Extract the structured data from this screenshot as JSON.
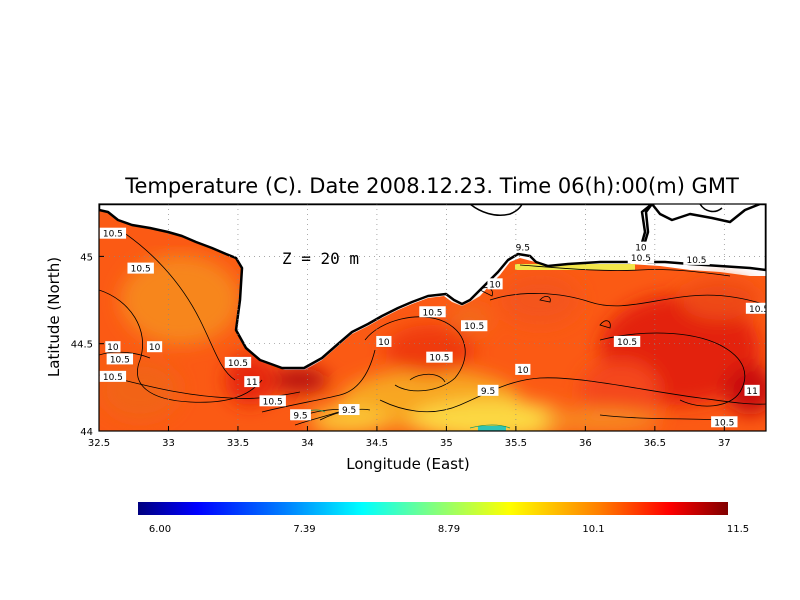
{
  "chart_data": {
    "type": "heatmap",
    "title": "Temperature (C). Date 2008.12.23. Time 06(h):00(m) GMT",
    "xlabel": "Longitude (East)",
    "ylabel": "Latitude (North)",
    "annotation": "Z = 20 m",
    "xlim": [
      32.5,
      37.3
    ],
    "ylim": [
      44.0,
      45.3
    ],
    "grid": true,
    "x_ticks": [
      "32.5",
      "33",
      "33.5",
      "34",
      "34.5",
      "35",
      "35.5",
      "36",
      "36.5",
      "37"
    ],
    "y_ticks": [
      "44",
      "44.5",
      "45"
    ],
    "colorbar": {
      "min": 6.0,
      "max": 11.5,
      "tick_labels": [
        "6.00",
        "7.39",
        "8.79",
        "10.1",
        "11.5"
      ],
      "colors": [
        "#00007f",
        "#0000ff",
        "#0080ff",
        "#00ffff",
        "#80ff80",
        "#ffff00",
        "#ff8000",
        "#ff0000",
        "#800000"
      ]
    },
    "contour_levels": [
      9.5,
      10,
      10.5,
      11
    ],
    "contour_labels": [
      {
        "lon": 32.6,
        "lat": 45.13,
        "text": "10.5"
      },
      {
        "lon": 32.8,
        "lat": 44.93,
        "text": "10.5"
      },
      {
        "lon": 32.6,
        "lat": 44.48,
        "text": "10"
      },
      {
        "lon": 32.9,
        "lat": 44.48,
        "text": "10"
      },
      {
        "lon": 32.65,
        "lat": 44.41,
        "text": "10.5"
      },
      {
        "lon": 32.6,
        "lat": 44.31,
        "text": "10.5"
      },
      {
        "lon": 33.5,
        "lat": 44.39,
        "text": "10.5"
      },
      {
        "lon": 33.6,
        "lat": 44.28,
        "text": "11"
      },
      {
        "lon": 33.75,
        "lat": 44.17,
        "text": "10.5"
      },
      {
        "lon": 33.95,
        "lat": 44.09,
        "text": "9.5"
      },
      {
        "lon": 34.3,
        "lat": 44.12,
        "text": "9.5"
      },
      {
        "lon": 34.55,
        "lat": 44.51,
        "text": "10"
      },
      {
        "lon": 34.9,
        "lat": 44.68,
        "text": "10.5"
      },
      {
        "lon": 34.95,
        "lat": 44.42,
        "text": "10.5"
      },
      {
        "lon": 35.2,
        "lat": 44.6,
        "text": "10.5"
      },
      {
        "lon": 35.3,
        "lat": 44.23,
        "text": "9.5"
      },
      {
        "lon": 35.55,
        "lat": 44.35,
        "text": "10"
      },
      {
        "lon": 35.35,
        "lat": 44.84,
        "text": "10"
      },
      {
        "lon": 35.55,
        "lat": 45.05,
        "text": "9.5"
      },
      {
        "lon": 36.4,
        "lat": 45.05,
        "text": "10"
      },
      {
        "lon": 36.4,
        "lat": 44.99,
        "text": "10.5"
      },
      {
        "lon": 36.8,
        "lat": 44.98,
        "text": "10.5"
      },
      {
        "lon": 36.3,
        "lat": 44.51,
        "text": "10.5"
      },
      {
        "lon": 37.25,
        "lat": 44.7,
        "text": "10.5"
      },
      {
        "lon": 37.2,
        "lat": 44.23,
        "text": "11"
      },
      {
        "lon": 37.0,
        "lat": 44.05,
        "text": "10.5"
      }
    ]
  }
}
